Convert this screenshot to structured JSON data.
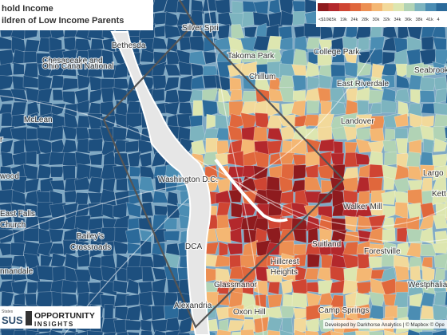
{
  "title": "hold Income",
  "subtitle": "ildren of Low Income Parents",
  "legend": {
    "labels": [
      "<$10k",
      "15k",
      "19k",
      "24k",
      "28k",
      "30k",
      "32k",
      "34k",
      "36k",
      "38k",
      "41k",
      "4"
    ]
  },
  "places": [
    {
      "label": "Silver Spri"
    },
    {
      "label": "Bethesda"
    },
    {
      "label": "Takoma Park"
    },
    {
      "label": "College Park"
    },
    {
      "label": "Chillum"
    },
    {
      "label": "Seabrook"
    },
    {
      "label": "East Riverdale"
    },
    {
      "label": "Chesapeake and"
    },
    {
      "label": "Ohio Canal National"
    },
    {
      "label": "McLean"
    },
    {
      "label": "Landover"
    },
    {
      "label": "Washington D.C."
    },
    {
      "label": "Largo"
    },
    {
      "label": "Kett"
    },
    {
      "label": "wood"
    },
    {
      "label": "Walker Mill"
    },
    {
      "label": "East Falls"
    },
    {
      "label": "Church"
    },
    {
      "label": "Bailey's"
    },
    {
      "label": "Crossroads"
    },
    {
      "label": "Suitland"
    },
    {
      "label": "Forestville"
    },
    {
      "label": "Hillcrest"
    },
    {
      "label": "Heights"
    },
    {
      "label": "DCA"
    },
    {
      "label": "Glassmanor"
    },
    {
      "label": "Westphalia"
    },
    {
      "label": "Oxon Hill"
    },
    {
      "label": "Camp Springs"
    },
    {
      "label": "Alexandria"
    },
    {
      "label": "nnandale"
    },
    {
      "label": "r"
    }
  ],
  "footer": "Developed by Darkhorse Analytics | © Mapbox © Ope",
  "logos": {
    "census_top": "States",
    "census": "SUS",
    "oi_top": "OPPORTUNITY",
    "oi_bottom": "INSIGHTS"
  }
}
